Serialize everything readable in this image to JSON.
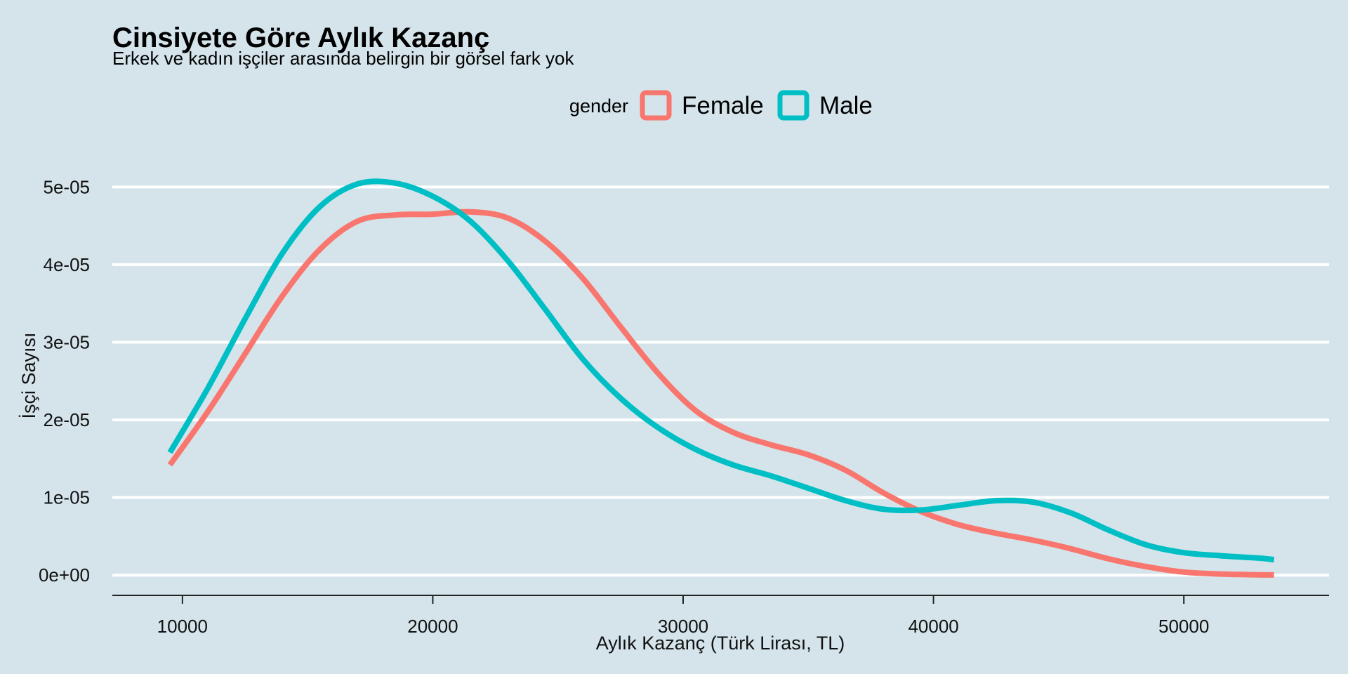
{
  "chart_data": {
    "type": "line",
    "title": "Cinsiyete Göre Aylık Kazanç",
    "subtitle": "Erkek ve kadın işçiler arasında belirgin bir görsel fark yok",
    "xlabel": "Aylık Kazanç (Türk Lirası, TL)",
    "ylabel": "İşçi Sayısı",
    "xlim": [
      7200,
      55800
    ],
    "ylim": [
      -2.6e-06,
      5.6e-05
    ],
    "x_ticks": [
      10000,
      20000,
      30000,
      40000,
      50000
    ],
    "x_tick_labels": [
      "10000",
      "20000",
      "30000",
      "40000",
      "50000"
    ],
    "y_ticks": [
      0,
      1e-05,
      2e-05,
      3e-05,
      4e-05,
      5e-05
    ],
    "y_tick_labels": [
      "0e+00",
      "1e-05",
      "2e-05",
      "3e-05",
      "4e-05",
      "5e-05"
    ],
    "grid": "horizontal",
    "legend": {
      "title": "gender",
      "placement": "top"
    },
    "series": [
      {
        "name": "Female",
        "color": "#f8766d",
        "x": [
          9500,
          11000,
          12500,
          14000,
          15500,
          17000,
          18500,
          20000,
          21500,
          23000,
          24500,
          26000,
          27500,
          29000,
          30500,
          32000,
          33500,
          35000,
          36500,
          38000,
          39500,
          41000,
          42500,
          44000,
          45500,
          47000,
          48500,
          50000,
          51500,
          53000,
          53600
        ],
        "y": [
          1.42e-05,
          2.1e-05,
          2.85e-05,
          3.6e-05,
          4.2e-05,
          4.56e-05,
          4.64e-05,
          4.65e-05,
          4.68e-05,
          4.6e-05,
          4.3e-05,
          3.82e-05,
          3.2e-05,
          2.6e-05,
          2.12e-05,
          1.84e-05,
          1.68e-05,
          1.55e-05,
          1.35e-05,
          1.06e-05,
          8.2e-06,
          6.5e-06,
          5.4e-06,
          4.5e-06,
          3.4e-06,
          2.1e-06,
          1.1e-06,
          4e-07,
          1.5e-07,
          5e-08,
          3e-08
        ]
      },
      {
        "name": "Male",
        "color": "#00bfc4",
        "x": [
          9500,
          11000,
          12500,
          14000,
          15500,
          17000,
          18500,
          20000,
          21500,
          23000,
          24500,
          26000,
          27500,
          29000,
          30500,
          32000,
          33500,
          35000,
          36500,
          38000,
          39500,
          41000,
          42500,
          44000,
          45500,
          47000,
          48500,
          50000,
          51500,
          53000,
          53600
        ],
        "y": [
          1.58e-05,
          2.4e-05,
          3.3e-05,
          4.15e-05,
          4.75e-05,
          5.04e-05,
          5.05e-05,
          4.88e-05,
          4.56e-05,
          4.05e-05,
          3.42e-05,
          2.78e-05,
          2.28e-05,
          1.9e-05,
          1.62e-05,
          1.42e-05,
          1.28e-05,
          1.12e-05,
          9.6e-06,
          8.5e-06,
          8.4e-06,
          9e-06,
          9.6e-06,
          9.4e-06,
          8e-06,
          5.8e-06,
          3.9e-06,
          2.9e-06,
          2.5e-06,
          2.2e-06,
          2e-06
        ]
      }
    ]
  }
}
